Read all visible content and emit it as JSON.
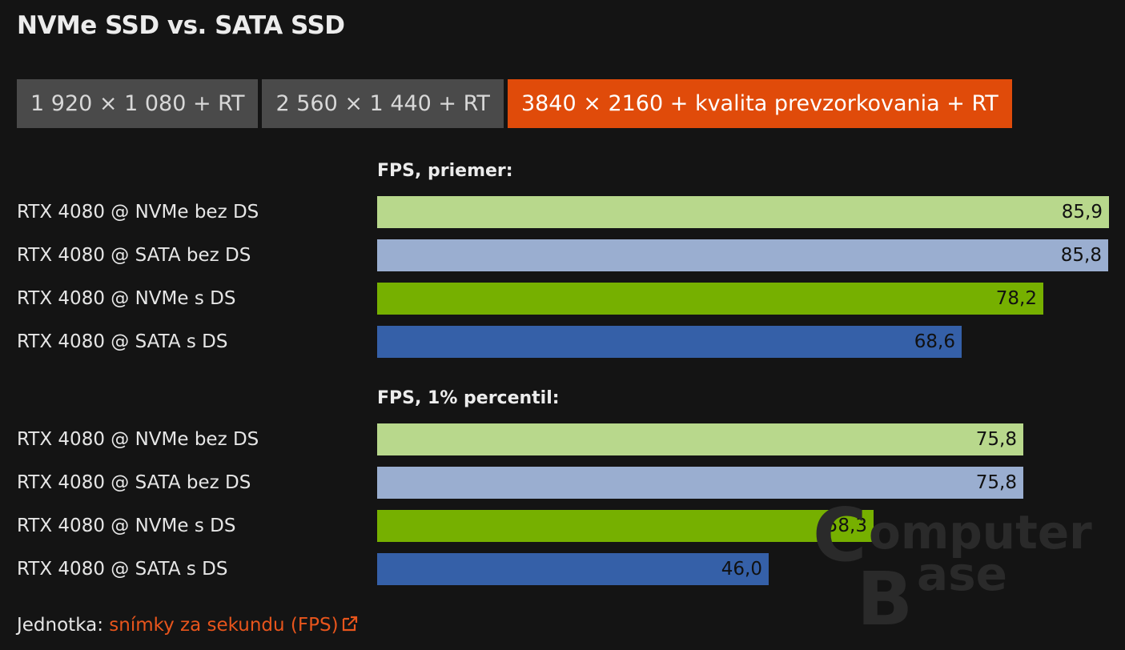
{
  "header": {
    "title": "NVMe SSD vs. SATA SSD"
  },
  "tabs": [
    {
      "label": "1 920 × 1 080 + RT",
      "active": false
    },
    {
      "label": "2 560 × 1 440 + RT",
      "active": false
    },
    {
      "label": "3840 × 2160 + kvalita prevzorkovania + RT",
      "active": true
    }
  ],
  "colors": {
    "background": "#141414",
    "active_tab": "#e04b0a",
    "inactive_tab": "#4a4a4a",
    "link": "#e8551c",
    "nvme_bez_ds": "#b8d88c",
    "sata_bez_ds": "#9aaed0",
    "nvme_s_ds": "#76b000",
    "sata_s_ds": "#3560a8"
  },
  "chart_data": [
    {
      "type": "bar",
      "orientation": "horizontal",
      "title": "FPS, priemer:",
      "categories": [
        "RTX 4080 @ NVMe bez DS",
        "RTX 4080 @ SATA bez DS",
        "RTX 4080 @ NVMe s DS",
        "RTX 4080 @ SATA s DS"
      ],
      "values": [
        85.9,
        85.8,
        78.2,
        68.6
      ],
      "value_labels": [
        "85,9",
        "85,8",
        "78,2",
        "68,6"
      ],
      "colors": [
        "#b8d88c",
        "#9aaed0",
        "#76b000",
        "#3560a8"
      ],
      "xlim": [
        0,
        85.9
      ]
    },
    {
      "type": "bar",
      "orientation": "horizontal",
      "title": "FPS, 1% percentil:",
      "categories": [
        "RTX 4080 @ NVMe bez DS",
        "RTX 4080 @ SATA bez DS",
        "RTX 4080 @ NVMe s DS",
        "RTX 4080 @ SATA s DS"
      ],
      "values": [
        75.8,
        75.8,
        58.3,
        46.0
      ],
      "value_labels": [
        "75,8",
        "75,8",
        "58,3",
        "46,0"
      ],
      "colors": [
        "#b8d88c",
        "#9aaed0",
        "#76b000",
        "#3560a8"
      ],
      "xlim": [
        0,
        85.9
      ]
    }
  ],
  "watermark": {
    "text_line1": "omputer",
    "text_line2": "ase",
    "letter_c": "C",
    "letter_b": "B"
  },
  "footer": {
    "unit_prefix": "Jednotka:",
    "unit_link": "snímky za sekundu (FPS)",
    "link_icon": "external-link-icon"
  }
}
